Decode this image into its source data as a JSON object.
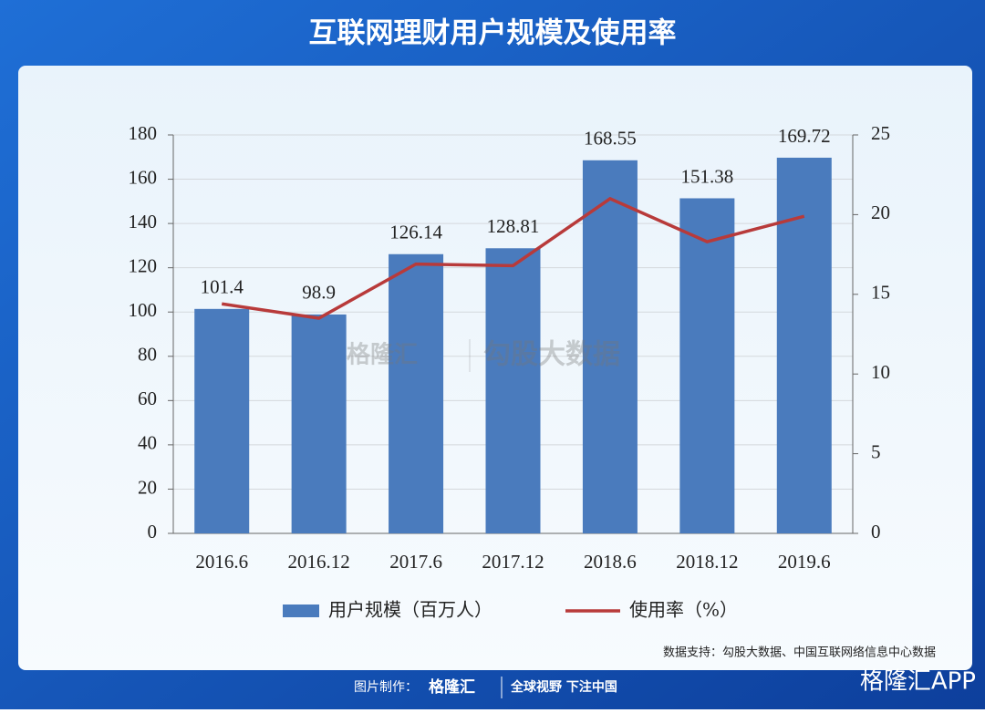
{
  "chart_data": {
    "type": "bar",
    "title": "互联网理财用户规模及使用率",
    "categories": [
      "2016.6",
      "2016.12",
      "2017.6",
      "2017.12",
      "2018.6",
      "2018.12",
      "2019.6"
    ],
    "series": [
      {
        "name": "用户规模（百万人）",
        "type": "bar",
        "color": "#4a7bbd",
        "values": [
          101.4,
          98.9,
          126.14,
          128.81,
          168.55,
          151.38,
          169.72
        ]
      },
      {
        "name": "使用率（%）",
        "type": "line",
        "axis": "y2",
        "color": "#b83a3a",
        "values": [
          14.4,
          13.5,
          16.9,
          16.8,
          21.0,
          18.3,
          19.9
        ]
      }
    ],
    "ylim": [
      0,
      180
    ],
    "yticks": [
      0,
      20,
      40,
      60,
      80,
      100,
      120,
      140,
      160,
      180
    ],
    "y2lim": [
      0,
      25
    ],
    "y2ticks": [
      0,
      5,
      10,
      15,
      20,
      25
    ],
    "grid": true,
    "legend": "bottom",
    "source": "数据支持：勾股大数据、中国互联网络信息中心数据"
  },
  "watermark": [
    "格隆汇",
    "勾股大数据"
  ],
  "footer": {
    "credit_label": "图片制作：",
    "brand": "格隆汇",
    "slogan": "全球视野 下注中国",
    "app": "格隆汇APP"
  }
}
